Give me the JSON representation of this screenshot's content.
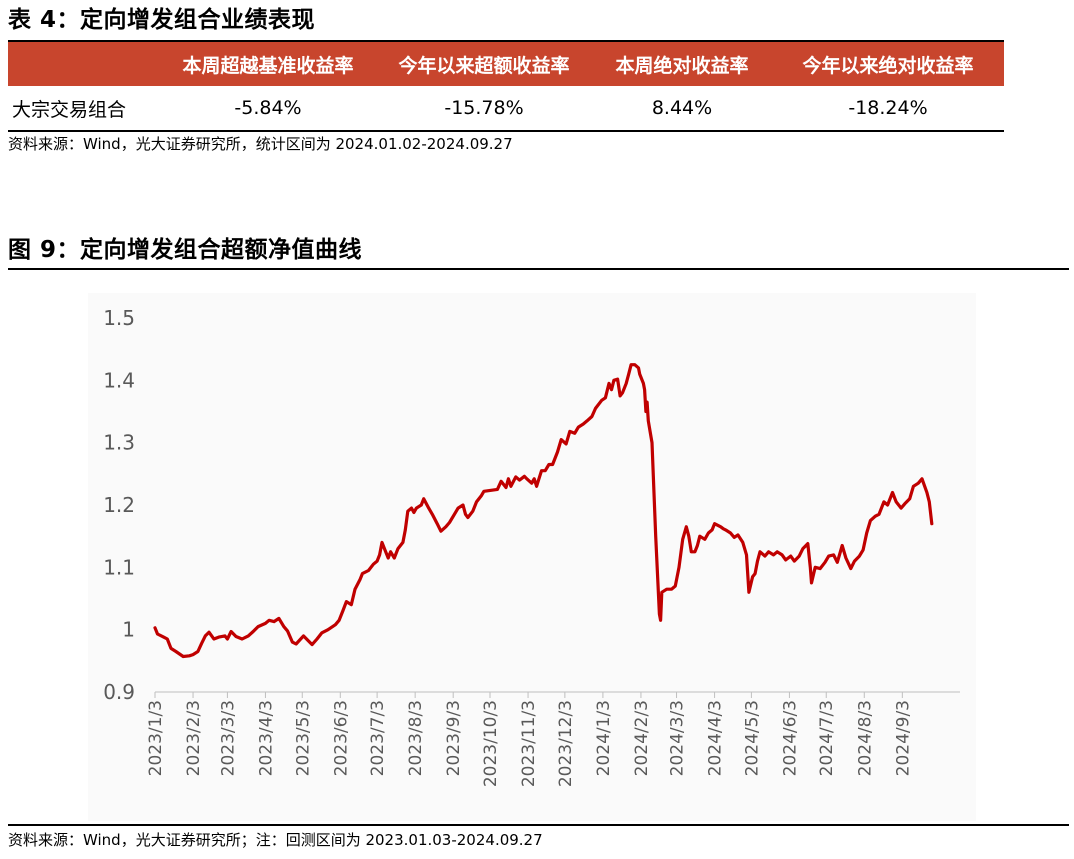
{
  "table": {
    "title": "表 4：定向增发组合业绩表现",
    "headers": [
      "",
      "本周超越基准收益率",
      "今年以来超额收益率",
      "本周绝对收益率",
      "今年以来绝对收益率"
    ],
    "rows": [
      {
        "label": "大宗交易组合",
        "values": [
          "-5.84%",
          "-15.78%",
          "8.44%",
          "-18.24%"
        ]
      }
    ],
    "source": "资料来源：Wind，光大证券研究所，统计区间为 2024.01.02-2024.09.27",
    "header_bg": "#c8452d",
    "header_text_color": "#ffffff"
  },
  "figure": {
    "title": "图 9：定向增发组合超额净值曲线",
    "source": "资料来源：Wind，光大证券研究所；注：回测区间为 2023.01.03-2024.09.27"
  },
  "chart_data": {
    "type": "line",
    "title": "",
    "xlabel": "",
    "ylabel": "",
    "ylim": [
      0.9,
      1.5
    ],
    "yticks": [
      0.9,
      1,
      1.1,
      1.2,
      1.3,
      1.4,
      1.5
    ],
    "ytick_labels": [
      "0.9",
      "1",
      "1.1",
      "1.2",
      "1.3",
      "1.4",
      "1.5"
    ],
    "x_range": [
      "2023-01-03",
      "2024-09-27"
    ],
    "x_axis_min": "2023-01-03",
    "x_axis_max": "2024-10-20",
    "xtick_dates": [
      "2023-01-03",
      "2023-02-03",
      "2023-03-03",
      "2023-04-03",
      "2023-05-03",
      "2023-06-03",
      "2023-07-03",
      "2023-08-03",
      "2023-09-03",
      "2023-10-03",
      "2023-11-03",
      "2023-12-03",
      "2024-01-03",
      "2024-02-03",
      "2024-03-03",
      "2024-04-03",
      "2024-05-03",
      "2024-06-03",
      "2024-07-03",
      "2024-08-03",
      "2024-09-03"
    ],
    "xtick_labels": [
      "2023/1/3",
      "2023/2/3",
      "2023/3/3",
      "2023/4/3",
      "2023/5/3",
      "2023/6/3",
      "2023/7/3",
      "2023/8/3",
      "2023/9/3",
      "2023/10/3",
      "2023/11/3",
      "2023/12/3",
      "2024/1/3",
      "2024/2/3",
      "2024/3/3",
      "2024/4/3",
      "2024/5/3",
      "2024/6/3",
      "2024/7/3",
      "2024/8/3",
      "2024/9/3"
    ],
    "grid": false,
    "legend": "none",
    "background": "#fafafa",
    "series": [
      {
        "color": "#c00000",
        "points": [
          [
            "2023-01-03",
            1.003
          ],
          [
            "2023-01-05",
            0.993
          ],
          [
            "2023-01-10",
            0.988
          ],
          [
            "2023-01-13",
            0.985
          ],
          [
            "2023-01-16",
            0.97
          ],
          [
            "2023-01-20",
            0.965
          ],
          [
            "2023-01-26",
            0.957
          ],
          [
            "2023-01-31",
            0.958
          ],
          [
            "2023-02-03",
            0.96
          ],
          [
            "2023-02-07",
            0.965
          ],
          [
            "2023-02-10",
            0.978
          ],
          [
            "2023-02-13",
            0.99
          ],
          [
            "2023-02-16",
            0.996
          ],
          [
            "2023-02-20",
            0.985
          ],
          [
            "2023-02-24",
            0.988
          ],
          [
            "2023-03-01",
            0.99
          ],
          [
            "2023-03-03",
            0.985
          ],
          [
            "2023-03-06",
            0.997
          ],
          [
            "2023-03-10",
            0.989
          ],
          [
            "2023-03-15",
            0.985
          ],
          [
            "2023-03-20",
            0.99
          ],
          [
            "2023-03-24",
            0.997
          ],
          [
            "2023-03-28",
            1.005
          ],
          [
            "2023-04-03",
            1.01
          ],
          [
            "2023-04-06",
            1.015
          ],
          [
            "2023-04-10",
            1.013
          ],
          [
            "2023-04-14",
            1.018
          ],
          [
            "2023-04-18",
            1.005
          ],
          [
            "2023-04-21",
            0.998
          ],
          [
            "2023-04-25",
            0.98
          ],
          [
            "2023-04-28",
            0.977
          ],
          [
            "2023-05-04",
            0.99
          ],
          [
            "2023-05-08",
            0.982
          ],
          [
            "2023-05-11",
            0.976
          ],
          [
            "2023-05-15",
            0.985
          ],
          [
            "2023-05-19",
            0.995
          ],
          [
            "2023-05-24",
            1.0
          ],
          [
            "2023-05-30",
            1.008
          ],
          [
            "2023-06-02",
            1.015
          ],
          [
            "2023-06-05",
            1.03
          ],
          [
            "2023-06-08",
            1.045
          ],
          [
            "2023-06-12",
            1.04
          ],
          [
            "2023-06-15",
            1.065
          ],
          [
            "2023-06-19",
            1.08
          ],
          [
            "2023-06-21",
            1.09
          ],
          [
            "2023-06-26",
            1.095
          ],
          [
            "2023-06-30",
            1.105
          ],
          [
            "2023-07-03",
            1.11
          ],
          [
            "2023-07-05",
            1.12
          ],
          [
            "2023-07-07",
            1.14
          ],
          [
            "2023-07-10",
            1.125
          ],
          [
            "2023-07-12",
            1.115
          ],
          [
            "2023-07-14",
            1.125
          ],
          [
            "2023-07-17",
            1.115
          ],
          [
            "2023-07-20",
            1.13
          ],
          [
            "2023-07-24",
            1.14
          ],
          [
            "2023-07-26",
            1.16
          ],
          [
            "2023-07-28",
            1.19
          ],
          [
            "2023-07-31",
            1.195
          ],
          [
            "2023-08-02",
            1.188
          ],
          [
            "2023-08-04",
            1.195
          ],
          [
            "2023-08-08",
            1.2
          ],
          [
            "2023-08-10",
            1.21
          ],
          [
            "2023-08-14",
            1.195
          ],
          [
            "2023-08-17",
            1.185
          ],
          [
            "2023-08-21",
            1.17
          ],
          [
            "2023-08-24",
            1.158
          ],
          [
            "2023-08-28",
            1.165
          ],
          [
            "2023-08-31",
            1.172
          ],
          [
            "2023-09-04",
            1.185
          ],
          [
            "2023-09-07",
            1.195
          ],
          [
            "2023-09-11",
            1.2
          ],
          [
            "2023-09-13",
            1.185
          ],
          [
            "2023-09-15",
            1.18
          ],
          [
            "2023-09-19",
            1.19
          ],
          [
            "2023-09-22",
            1.205
          ],
          [
            "2023-09-26",
            1.215
          ],
          [
            "2023-09-28",
            1.222
          ],
          [
            "2023-10-09",
            1.225
          ],
          [
            "2023-10-12",
            1.238
          ],
          [
            "2023-10-16",
            1.228
          ],
          [
            "2023-10-18",
            1.242
          ],
          [
            "2023-10-20",
            1.23
          ],
          [
            "2023-10-24",
            1.245
          ],
          [
            "2023-10-27",
            1.24
          ],
          [
            "2023-10-31",
            1.246
          ],
          [
            "2023-11-02",
            1.242
          ],
          [
            "2023-11-06",
            1.235
          ],
          [
            "2023-11-08",
            1.242
          ],
          [
            "2023-11-10",
            1.23
          ],
          [
            "2023-11-14",
            1.255
          ],
          [
            "2023-11-17",
            1.255
          ],
          [
            "2023-11-20",
            1.265
          ],
          [
            "2023-11-23",
            1.265
          ],
          [
            "2023-11-27",
            1.285
          ],
          [
            "2023-11-30",
            1.305
          ],
          [
            "2023-12-04",
            1.298
          ],
          [
            "2023-12-07",
            1.318
          ],
          [
            "2023-12-11",
            1.315
          ],
          [
            "2023-12-14",
            1.325
          ],
          [
            "2023-12-18",
            1.33
          ],
          [
            "2023-12-21",
            1.335
          ],
          [
            "2023-12-25",
            1.342
          ],
          [
            "2023-12-28",
            1.355
          ],
          [
            "2024-01-02",
            1.368
          ],
          [
            "2024-01-05",
            1.372
          ],
          [
            "2024-01-08",
            1.395
          ],
          [
            "2024-01-10",
            1.385
          ],
          [
            "2024-01-12",
            1.4
          ],
          [
            "2024-01-15",
            1.402
          ],
          [
            "2024-01-17",
            1.375
          ],
          [
            "2024-01-19",
            1.38
          ],
          [
            "2024-01-22",
            1.395
          ],
          [
            "2024-01-24",
            1.41
          ],
          [
            "2024-01-26",
            1.425
          ],
          [
            "2024-01-29",
            1.425
          ],
          [
            "2024-02-01",
            1.42
          ],
          [
            "2024-02-02",
            1.41
          ],
          [
            "2024-02-05",
            1.395
          ],
          [
            "2024-02-06",
            1.385
          ],
          [
            "2024-02-07",
            1.35
          ],
          [
            "2024-02-08",
            1.365
          ],
          [
            "2024-02-09",
            1.335
          ],
          [
            "2024-02-12",
            1.3
          ],
          [
            "2024-02-15",
            1.15
          ],
          [
            "2024-02-18",
            1.025
          ],
          [
            "2024-02-19",
            1.015
          ],
          [
            "2024-02-20",
            1.06
          ],
          [
            "2024-02-24",
            1.065
          ],
          [
            "2024-02-28",
            1.065
          ],
          [
            "2024-03-02",
            1.07
          ],
          [
            "2024-03-05",
            1.1
          ],
          [
            "2024-03-08",
            1.145
          ],
          [
            "2024-03-11",
            1.165
          ],
          [
            "2024-03-13",
            1.15
          ],
          [
            "2024-03-15",
            1.125
          ],
          [
            "2024-03-18",
            1.125
          ],
          [
            "2024-03-20",
            1.135
          ],
          [
            "2024-03-22",
            1.15
          ],
          [
            "2024-03-26",
            1.145
          ],
          [
            "2024-03-29",
            1.155
          ],
          [
            "2024-04-01",
            1.16
          ],
          [
            "2024-04-03",
            1.17
          ],
          [
            "2024-04-08",
            1.165
          ],
          [
            "2024-04-10",
            1.162
          ],
          [
            "2024-04-12",
            1.16
          ],
          [
            "2024-04-16",
            1.155
          ],
          [
            "2024-04-19",
            1.148
          ],
          [
            "2024-04-22",
            1.152
          ],
          [
            "2024-04-26",
            1.14
          ],
          [
            "2024-04-29",
            1.12
          ],
          [
            "2024-05-01",
            1.06
          ],
          [
            "2024-05-04",
            1.085
          ],
          [
            "2024-05-06",
            1.09
          ],
          [
            "2024-05-08",
            1.11
          ],
          [
            "2024-05-10",
            1.125
          ],
          [
            "2024-05-14",
            1.118
          ],
          [
            "2024-05-17",
            1.125
          ],
          [
            "2024-05-21",
            1.12
          ],
          [
            "2024-05-24",
            1.125
          ],
          [
            "2024-05-28",
            1.12
          ],
          [
            "2024-05-31",
            1.112
          ],
          [
            "2024-06-04",
            1.118
          ],
          [
            "2024-06-07",
            1.11
          ],
          [
            "2024-06-11",
            1.118
          ],
          [
            "2024-06-14",
            1.13
          ],
          [
            "2024-06-18",
            1.138
          ],
          [
            "2024-06-20",
            1.1
          ],
          [
            "2024-06-21",
            1.075
          ],
          [
            "2024-06-24",
            1.1
          ],
          [
            "2024-06-28",
            1.098
          ],
          [
            "2024-07-02",
            1.108
          ],
          [
            "2024-07-05",
            1.118
          ],
          [
            "2024-07-09",
            1.12
          ],
          [
            "2024-07-12",
            1.108
          ],
          [
            "2024-07-16",
            1.135
          ],
          [
            "2024-07-19",
            1.115
          ],
          [
            "2024-07-23",
            1.098
          ],
          [
            "2024-07-26",
            1.11
          ],
          [
            "2024-07-30",
            1.118
          ],
          [
            "2024-08-02",
            1.128
          ],
          [
            "2024-08-05",
            1.155
          ],
          [
            "2024-08-08",
            1.175
          ],
          [
            "2024-08-12",
            1.182
          ],
          [
            "2024-08-15",
            1.185
          ],
          [
            "2024-08-19",
            1.205
          ],
          [
            "2024-08-22",
            1.2
          ],
          [
            "2024-08-26",
            1.22
          ],
          [
            "2024-08-29",
            1.205
          ],
          [
            "2024-09-02",
            1.195
          ],
          [
            "2024-09-05",
            1.202
          ],
          [
            "2024-09-09",
            1.21
          ],
          [
            "2024-09-12",
            1.23
          ],
          [
            "2024-09-16",
            1.235
          ],
          [
            "2024-09-19",
            1.242
          ],
          [
            "2024-09-23",
            1.22
          ],
          [
            "2024-09-25",
            1.205
          ],
          [
            "2024-09-27",
            1.17
          ]
        ]
      }
    ]
  }
}
